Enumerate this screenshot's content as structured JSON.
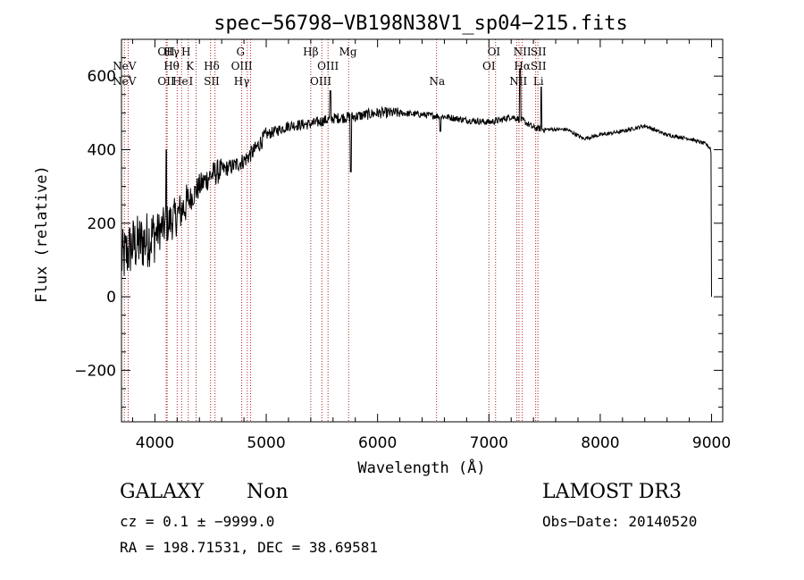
{
  "chart_data": {
    "type": "line",
    "title": "spec−56798−VB198N38V1_sp04−215.fits",
    "xlabel": "Wavelength (Å)",
    "ylabel": "Flux (relative)",
    "xlim": [
      3700,
      9100
    ],
    "ylim": [
      -340,
      700
    ],
    "x_ticks": [
      4000,
      5000,
      6000,
      7000,
      8000,
      9000
    ],
    "y_ticks": [
      -200,
      0,
      200,
      400,
      600
    ],
    "y_tick_labels": [
      "−200",
      "0",
      "200",
      "400",
      "600"
    ],
    "spectrum_keypoints": {
      "x": [
        3700,
        3750,
        3800,
        3900,
        4000,
        4100,
        4200,
        4300,
        4400,
        4500,
        4600,
        4700,
        4800,
        4900,
        5000,
        5200,
        5400,
        5600,
        5800,
        6000,
        6200,
        6400,
        6600,
        6800,
        7000,
        7100,
        7200,
        7300,
        7400,
        7500,
        7700,
        7850,
        8000,
        8200,
        8400,
        8600,
        8800,
        8950,
        9000
      ],
      "y": [
        100,
        120,
        140,
        150,
        170,
        195,
        220,
        260,
        300,
        330,
        345,
        355,
        370,
        400,
        440,
        465,
        470,
        485,
        490,
        500,
        500,
        495,
        490,
        480,
        475,
        480,
        490,
        480,
        460,
        455,
        455,
        430,
        440,
        450,
        465,
        440,
        430,
        415,
        400
      ]
    },
    "features": [
      {
        "wavelength": 4102,
        "flux": 400
      },
      {
        "wavelength": 5577,
        "flux": 560
      },
      {
        "wavelength": 5760,
        "flux": 340
      },
      {
        "wavelength": 6563,
        "flux": 450
      },
      {
        "wavelength": 7280,
        "flux": 620
      },
      {
        "wavelength": 7470,
        "flux": 570
      },
      {
        "wavelength": 9000,
        "flux": 0
      }
    ],
    "line_markers": [
      {
        "label": "NeV",
        "wavelength": 3726,
        "row": 2
      },
      {
        "label": "NeV",
        "wavelength": 3726,
        "row": 3
      },
      {
        "label": "OII",
        "wavelength": 4102,
        "row": 0
      },
      {
        "label": "OII",
        "wavelength": 4102,
        "row": 3
      },
      {
        "label": "Hγ",
        "wavelength": 4150,
        "row": 0
      },
      {
        "label": "Hθ",
        "wavelength": 4150,
        "row": 1
      },
      {
        "label": "H",
        "wavelength": 4280,
        "row": 0
      },
      {
        "label": "He",
        "wavelength": 4228,
        "row": 3
      },
      {
        "label": "K",
        "wavelength": 4315,
        "row": 1
      },
      {
        "label": "I",
        "wavelength": 4325,
        "row": 3
      },
      {
        "label": "Hδ",
        "wavelength": 4510,
        "row": 1
      },
      {
        "label": "SII",
        "wavelength": 4510,
        "row": 3
      },
      {
        "label": "G",
        "wavelength": 4770,
        "row": 0
      },
      {
        "label": "OIII",
        "wavelength": 4780,
        "row": 1
      },
      {
        "label": "Hγ",
        "wavelength": 4780,
        "row": 3
      },
      {
        "label": "Hβ",
        "wavelength": 5400,
        "row": 0
      },
      {
        "label": "OIII",
        "wavelength": 5555,
        "row": 1
      },
      {
        "label": "OIII",
        "wavelength": 5490,
        "row": 3
      },
      {
        "label": "Mg",
        "wavelength": 5735,
        "row": 0
      },
      {
        "label": "Na",
        "wavelength": 6535,
        "row": 3
      },
      {
        "label": "OI",
        "wavelength": 7045,
        "row": 0
      },
      {
        "label": "OI",
        "wavelength": 7000,
        "row": 2
      },
      {
        "label": "NII",
        "wavelength": 7300,
        "row": 0
      },
      {
        "label": "Hα",
        "wavelength": 7300,
        "row": 2
      },
      {
        "label": "NII",
        "wavelength": 7265,
        "row": 3
      },
      {
        "label": "SII",
        "wavelength": 7445,
        "row": 0
      },
      {
        "label": "SII",
        "wavelength": 7445,
        "row": 2
      },
      {
        "label": "Li",
        "wavelength": 7445,
        "row": 3
      }
    ],
    "marker_lines": [
      3726,
      3760,
      4102,
      4110,
      4200,
      4240,
      4300,
      4370,
      4500,
      4540,
      4780,
      4830,
      4860,
      5400,
      5500,
      5555,
      5740,
      6530,
      7000,
      7060,
      7250,
      7270,
      7300,
      7420,
      7440
    ]
  },
  "info": {
    "object_class": "GALAXY",
    "subclass": "Non",
    "survey": "LAMOST DR3",
    "redshift": "cz = 0.1 ± −9999.0",
    "obs_date": "Obs−Date: 20140520",
    "coords": "RA = 198.71531, DEC =  38.69581"
  },
  "colors": {
    "spectrum": "#000000",
    "markers": "#b02020",
    "axis": "#000000"
  }
}
